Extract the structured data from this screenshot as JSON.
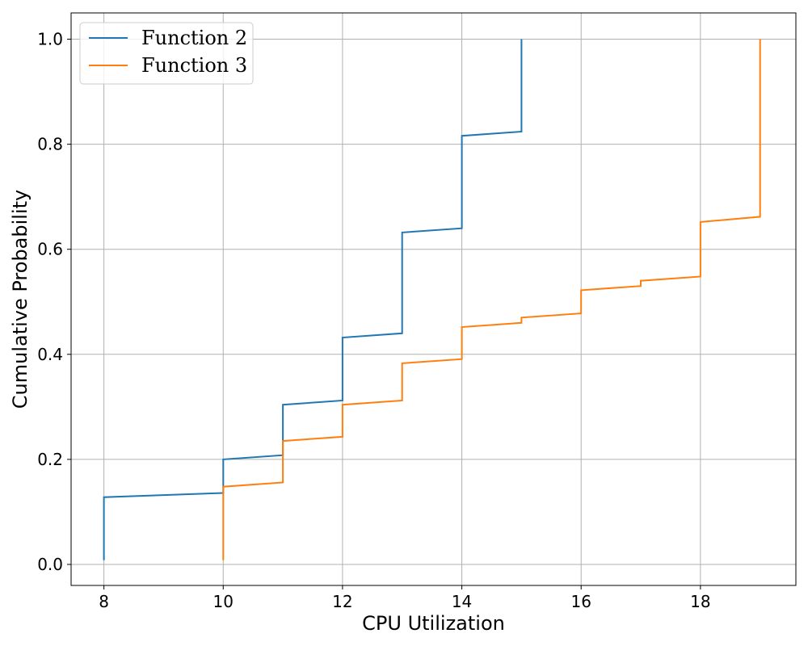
{
  "chart_data": {
    "type": "line",
    "title": "",
    "xlabel": "CPU Utilization",
    "ylabel": "Cumulative Probability",
    "xlim": [
      7.45,
      19.6
    ],
    "ylim": [
      -0.04,
      1.05
    ],
    "xticks": [
      8,
      10,
      12,
      14,
      16,
      18
    ],
    "yticks": [
      0.0,
      0.2,
      0.4,
      0.6,
      0.8,
      1.0
    ],
    "xtick_labels": [
      "8",
      "10",
      "12",
      "14",
      "16",
      "18"
    ],
    "ytick_labels": [
      "0.0",
      "0.2",
      "0.4",
      "0.6",
      "0.8",
      "1.0"
    ],
    "grid": true,
    "legend_position": "top-left",
    "series": [
      {
        "name": "Function 2",
        "color": "#1f77b4",
        "points": [
          [
            8,
            0.008
          ],
          [
            8,
            0.128
          ],
          [
            10,
            0.136
          ],
          [
            10,
            0.2
          ],
          [
            11,
            0.208
          ],
          [
            11,
            0.304
          ],
          [
            12,
            0.312
          ],
          [
            12,
            0.432
          ],
          [
            13,
            0.44
          ],
          [
            13,
            0.632
          ],
          [
            14,
            0.64
          ],
          [
            14,
            0.816
          ],
          [
            15,
            0.824
          ],
          [
            15,
            1.0
          ]
        ]
      },
      {
        "name": "Function 3",
        "color": "#ff7f0e",
        "points": [
          [
            10,
            0.008
          ],
          [
            10,
            0.148
          ],
          [
            11,
            0.156
          ],
          [
            11,
            0.235
          ],
          [
            12,
            0.243
          ],
          [
            12,
            0.304
          ],
          [
            13,
            0.312
          ],
          [
            13,
            0.383
          ],
          [
            14,
            0.391
          ],
          [
            14,
            0.452
          ],
          [
            15,
            0.46
          ],
          [
            15,
            0.47
          ],
          [
            16,
            0.478
          ],
          [
            16,
            0.522
          ],
          [
            17,
            0.53
          ],
          [
            17,
            0.54
          ],
          [
            18,
            0.548
          ],
          [
            18,
            0.652
          ],
          [
            19,
            0.662
          ],
          [
            19,
            1.0
          ]
        ]
      }
    ]
  }
}
